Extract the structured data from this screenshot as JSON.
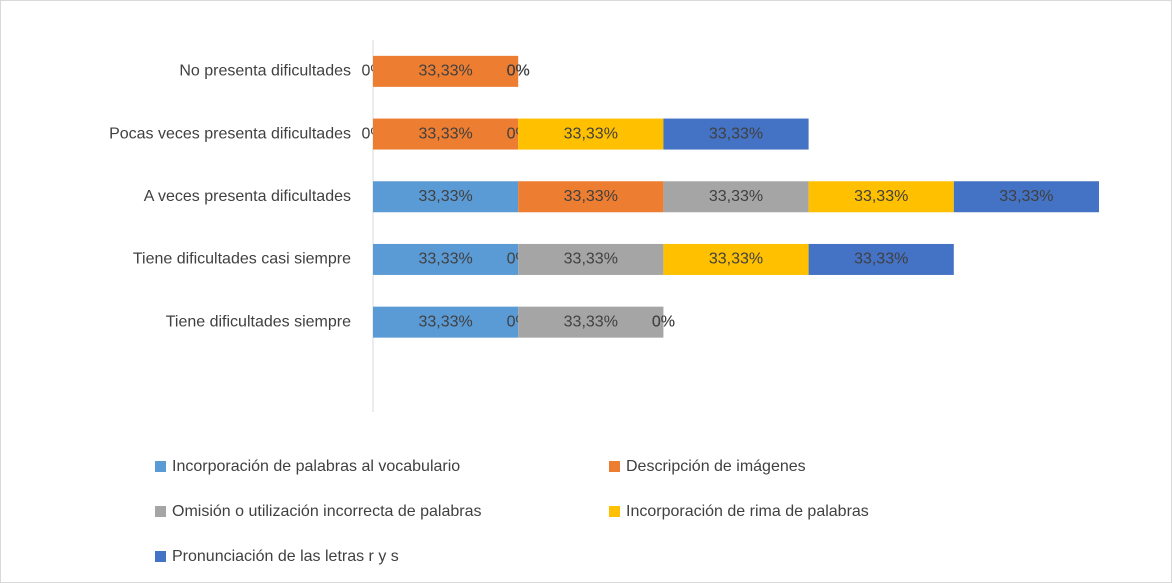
{
  "chart_data": {
    "type": "stacked_barh",
    "categories": [
      "No presenta dificultades",
      "Pocas veces presenta dificultades",
      "A veces presenta dificultades",
      "Tiene dificultades casi siempre",
      "Tiene dificultades siempre"
    ],
    "series": [
      {
        "name": "Incorporación de palabras al vocabulario",
        "color": "#5b9bd5",
        "values": [
          0,
          0,
          33.33,
          33.33,
          33.33
        ],
        "value_labels": [
          "0%",
          "0%",
          "33,33%",
          "33,33%",
          "33,33%"
        ]
      },
      {
        "name": "Descripción de imágenes",
        "color": "#ed7d31",
        "values": [
          33.33,
          33.33,
          33.33,
          0,
          0
        ],
        "value_labels": [
          "33,33%",
          "33,33%",
          "33,33%",
          "0%",
          "0%"
        ]
      },
      {
        "name": "Omisión o utilización incorrecta de palabras",
        "color": "#a5a5a5",
        "values": [
          0,
          0,
          33.33,
          33.33,
          33.33
        ],
        "value_labels": [
          "0%",
          "0%",
          "33,33%",
          "33,33%",
          "33,33%"
        ]
      },
      {
        "name": "Incorporación de rima de palabras",
        "color": "#ffc000",
        "values": [
          0,
          33.33,
          33.33,
          33.33,
          0
        ],
        "value_labels": [
          "0%",
          "33,33%",
          "33,33%",
          "33,33%",
          "0%"
        ]
      },
      {
        "name": "Pronunciación de las letras r y s",
        "color": "#4472c4",
        "values": [
          0,
          33.33,
          33.33,
          33.33,
          0
        ],
        "value_labels": [
          "0%",
          "33,33%",
          "33,33%",
          "33,33%",
          "0%"
        ]
      }
    ],
    "legend": "bottom"
  }
}
